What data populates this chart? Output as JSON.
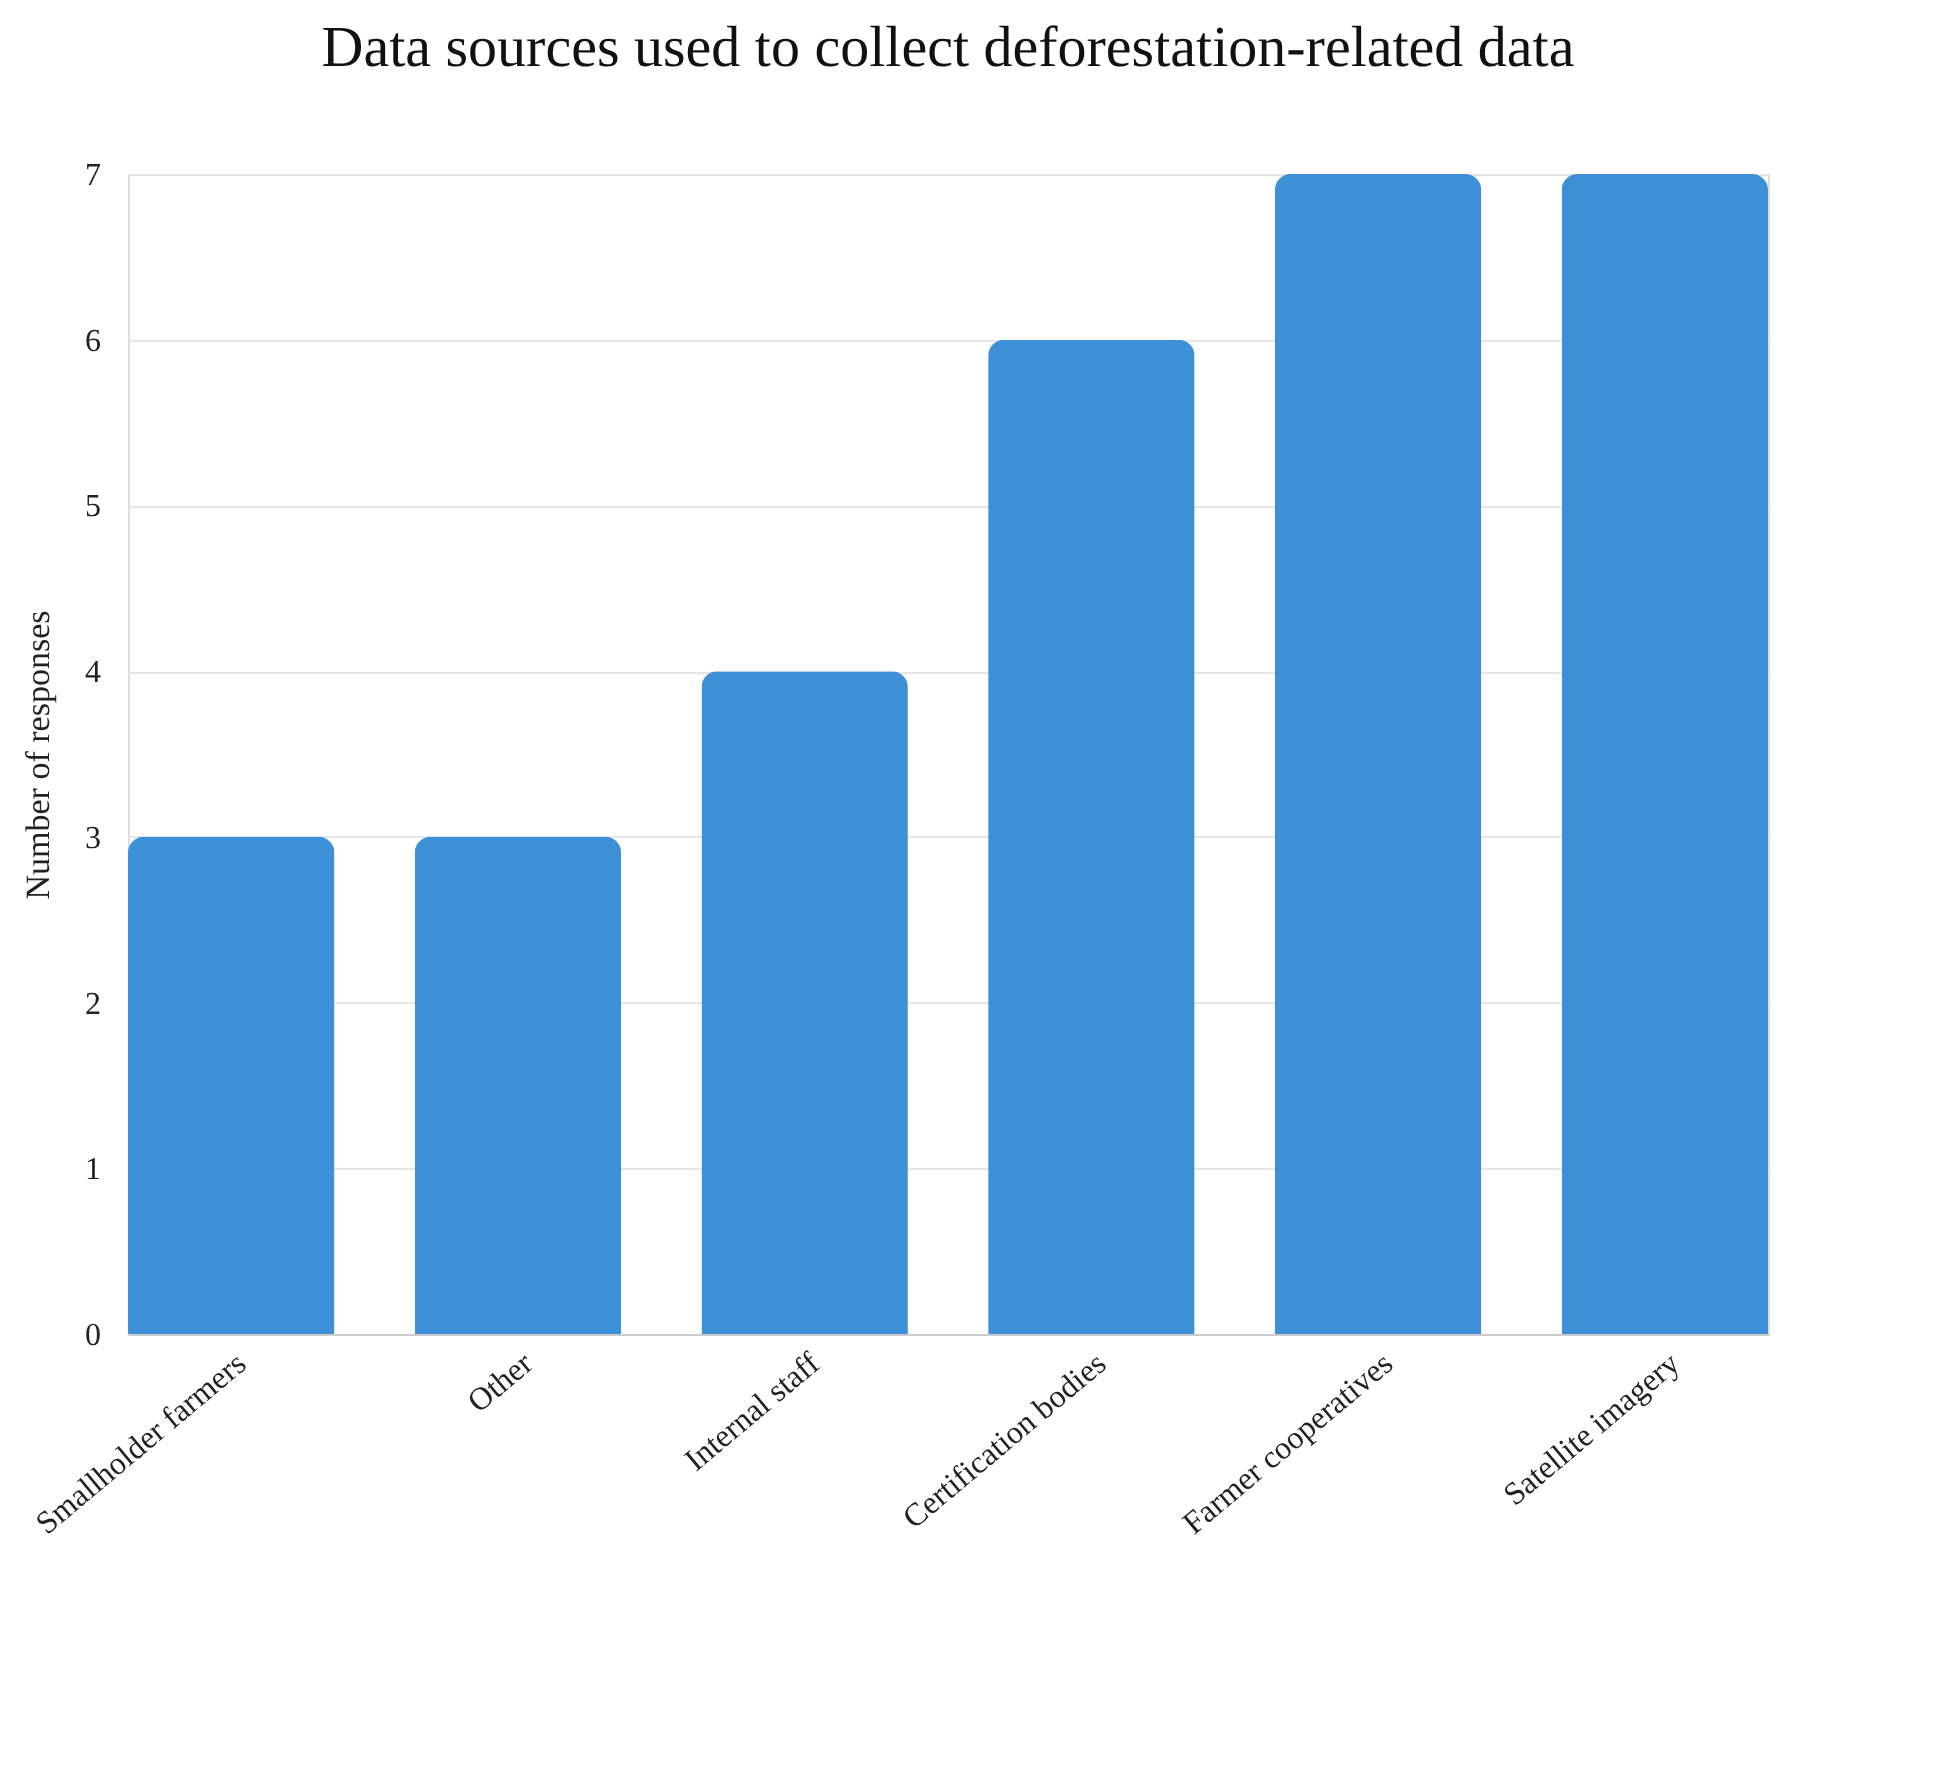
{
  "chart_data": {
    "type": "bar",
    "title": "Data sources used to collect deforestation-related data",
    "ylabel": "Number of responses",
    "categories": [
      "Smallholder farmers",
      "Other",
      "Internal staff",
      "Certification bodies",
      "Farmer cooperatives",
      "Satellite imagery"
    ],
    "values": [
      3,
      3,
      4,
      6,
      7,
      7
    ],
    "color": "#3d8fd6",
    "ylim": [
      0,
      7
    ],
    "yticks": [
      0,
      1,
      2,
      3,
      4,
      5,
      6,
      7
    ],
    "grid": "y"
  }
}
